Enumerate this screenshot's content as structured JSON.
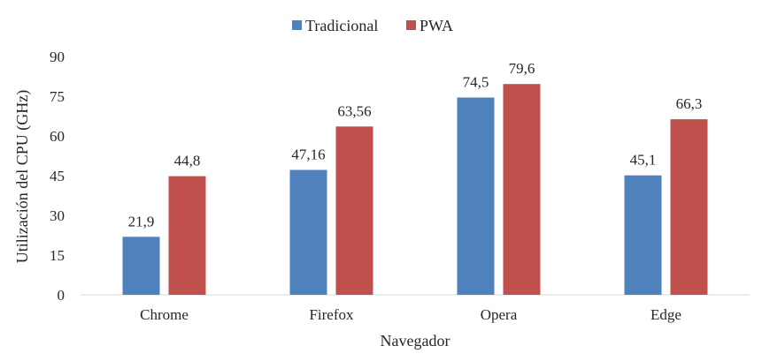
{
  "chart_data": {
    "type": "bar",
    "title": "",
    "xlabel": "Navegador",
    "ylabel": "Utilización del CPU (GHz)",
    "categories": [
      "Chrome",
      "Firefox",
      "Opera",
      "Edge"
    ],
    "series": [
      {
        "name": "Tradicional",
        "color": "#4f81bd",
        "values": [
          21.9,
          47.16,
          74.5,
          45.1
        ],
        "labels": [
          "21,9",
          "47,16",
          "74,5",
          "45,1"
        ]
      },
      {
        "name": "PWA",
        "color": "#c0504d",
        "values": [
          44.8,
          63.56,
          79.6,
          66.3
        ],
        "labels": [
          "44,8",
          "63,56",
          "79,6",
          "66,3"
        ]
      }
    ],
    "ylim": [
      0,
      90
    ],
    "yticks": [
      0,
      15,
      30,
      45,
      60,
      75,
      90
    ],
    "grid": false,
    "legend_position": "top-center"
  }
}
